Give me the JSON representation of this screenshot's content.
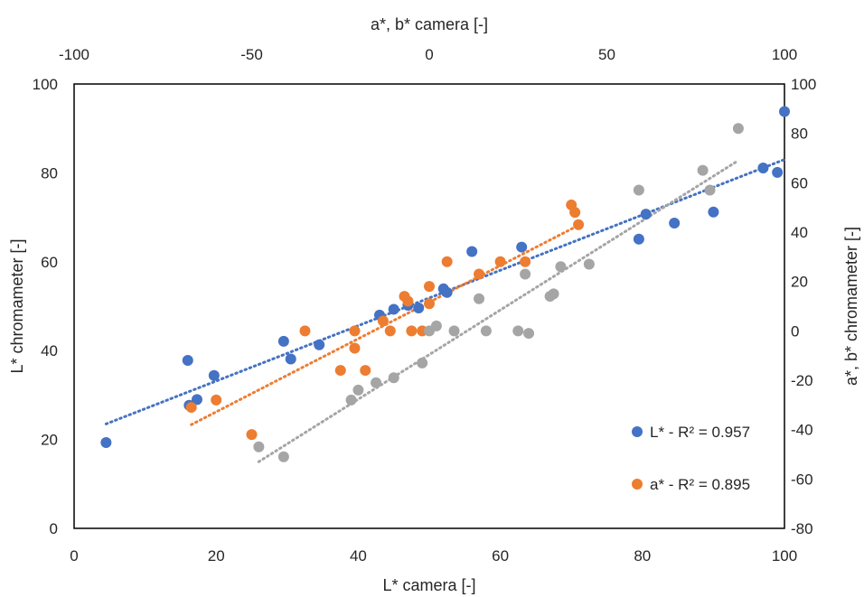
{
  "chart_data": {
    "type": "scatter",
    "xlabel": "L* camera [-]",
    "ylabel": "L* chromameter [-]",
    "x2label": "a*, b* camera [-]",
    "y2label": "a*, b* chromameter [-]",
    "xlim": [
      0,
      100
    ],
    "ylim": [
      0,
      100
    ],
    "x2lim": [
      -100,
      100
    ],
    "y2lim": [
      -80,
      100
    ],
    "xticks": [
      "0",
      "20",
      "40",
      "60",
      "80",
      "100"
    ],
    "yticks": [
      "0",
      "20",
      "40",
      "60",
      "80",
      "100"
    ],
    "x2ticks": [
      "-100",
      "-50",
      "0",
      "50",
      "100"
    ],
    "y2ticks": [
      "-80",
      "-60",
      "-40",
      "-20",
      "0",
      "20",
      "40",
      "60",
      "80",
      "100"
    ],
    "grid": false,
    "legend_position": "bottom-right",
    "series": [
      {
        "name": "L* - R² = 0.957",
        "color": "#4472C4",
        "axes": "primary",
        "points": [
          [
            4.5,
            19.3
          ],
          [
            16,
            37.8
          ],
          [
            16.2,
            27.7
          ],
          [
            17.3,
            29
          ],
          [
            19.7,
            34.4
          ],
          [
            29.5,
            42.1
          ],
          [
            30.5,
            38.1
          ],
          [
            34.5,
            41.3
          ],
          [
            43,
            48
          ],
          [
            45,
            49.3
          ],
          [
            47,
            50.2
          ],
          [
            48.5,
            49.6
          ],
          [
            52,
            53.9
          ],
          [
            52.5,
            53.1
          ],
          [
            56,
            62.3
          ],
          [
            63,
            63.3
          ],
          [
            79.5,
            65.1
          ],
          [
            80.5,
            70.7
          ],
          [
            84.5,
            68.7
          ],
          [
            90,
            71.2
          ],
          [
            97,
            81.1
          ],
          [
            99,
            80.1
          ],
          [
            100,
            93.8
          ]
        ],
        "trend": [
          [
            4.5,
            23.5
          ],
          [
            100,
            83
          ]
        ]
      },
      {
        "name": "a* - R² = 0.895",
        "color": "#ED7D31",
        "axes": "secondary",
        "points": [
          [
            -67,
            -31
          ],
          [
            -60,
            -28
          ],
          [
            -50,
            -42
          ],
          [
            -35,
            0
          ],
          [
            -25,
            -16
          ],
          [
            -21,
            -7
          ],
          [
            -21,
            0
          ],
          [
            -18,
            -16
          ],
          [
            -13,
            4
          ],
          [
            -11,
            0
          ],
          [
            -7,
            14
          ],
          [
            -6,
            12
          ],
          [
            -5,
            0
          ],
          [
            -2,
            0
          ],
          [
            0,
            18
          ],
          [
            0,
            11
          ],
          [
            5,
            28
          ],
          [
            14,
            23
          ],
          [
            20,
            28
          ],
          [
            27,
            28
          ],
          [
            40,
            51
          ],
          [
            41,
            48
          ],
          [
            42,
            43
          ]
        ],
        "trend": [
          [
            -67,
            -38
          ],
          [
            41,
            42
          ]
        ]
      },
      {
        "name": "",
        "color": "#A5A5A5",
        "axes": "secondary",
        "points": [
          [
            -48,
            -47
          ],
          [
            -41,
            -51
          ],
          [
            -22,
            -28
          ],
          [
            -20,
            -24
          ],
          [
            -15,
            -21
          ],
          [
            -10,
            -19
          ],
          [
            -2,
            -13
          ],
          [
            0,
            0
          ],
          [
            2,
            2
          ],
          [
            7,
            0
          ],
          [
            14,
            13
          ],
          [
            16,
            0
          ],
          [
            25,
            0
          ],
          [
            27,
            23
          ],
          [
            28,
            -1
          ],
          [
            34,
            14
          ],
          [
            35,
            15
          ],
          [
            37,
            26
          ],
          [
            45,
            27
          ],
          [
            59,
            57
          ],
          [
            77,
            65
          ],
          [
            79,
            57
          ],
          [
            87,
            82
          ]
        ],
        "trend": [
          [
            -48,
            -53
          ],
          [
            87,
            69
          ]
        ]
      }
    ]
  }
}
